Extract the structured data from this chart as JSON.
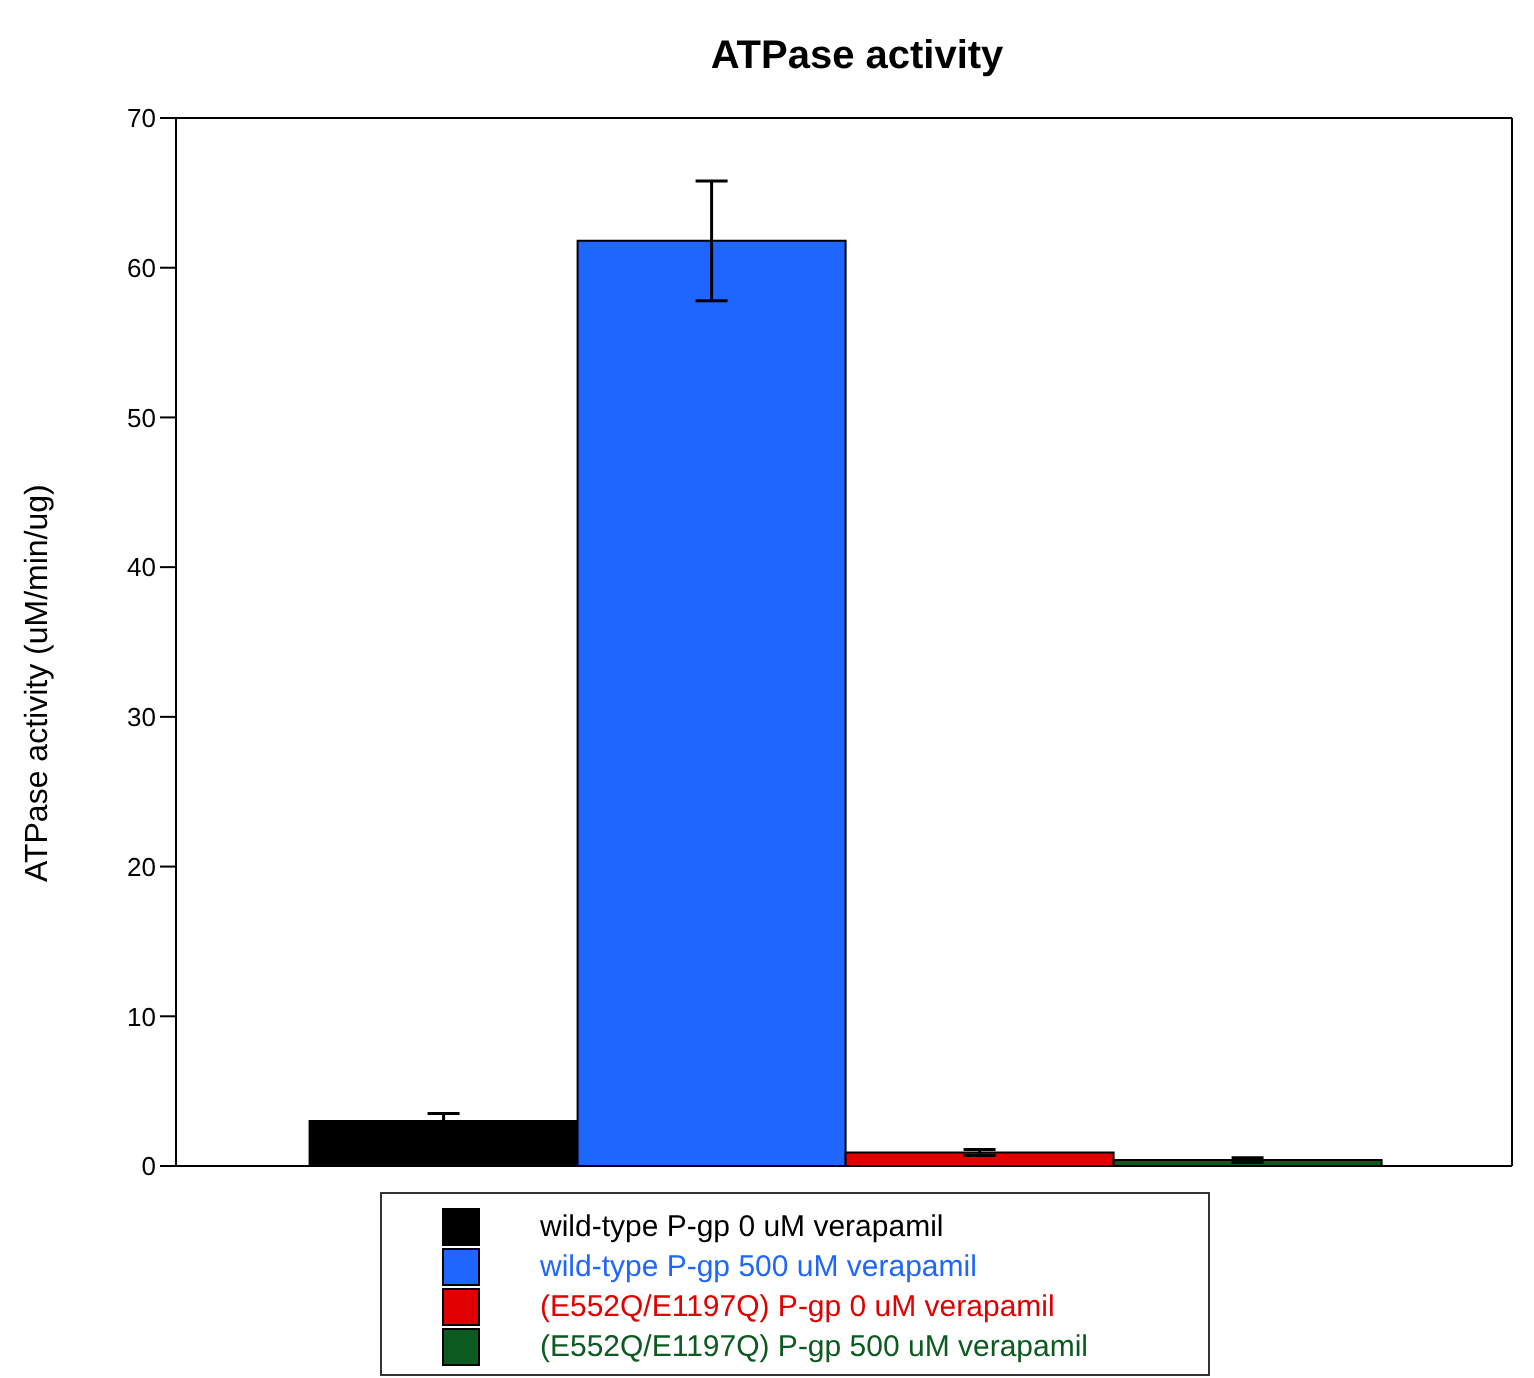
{
  "chart_data": {
    "type": "bar",
    "title": "ATPase activity",
    "ylabel": "ATPase activity (uM/min/ug)",
    "categories": [
      null
    ],
    "series": [
      {
        "name": "wild-type P-gp 0 uM verapamil",
        "color": "#000000",
        "values": [
          3.0
        ],
        "errors": [
          0.5
        ]
      },
      {
        "name": "wild-type P-gp 500 uM verapamil",
        "color": "#1f66ff",
        "values": [
          61.8
        ],
        "errors": [
          4.0
        ]
      },
      {
        "name": "(E552Q/E1197Q) P-gp 0 uM verapamil",
        "color": "#e00000",
        "values": [
          0.9
        ],
        "errors": [
          0.2
        ]
      },
      {
        "name": "(E552Q/E1197Q) P-gp 500 uM verapamil",
        "color": "#0b5a1f",
        "values": [
          0.4
        ],
        "errors": [
          0.15
        ]
      }
    ],
    "ylim": [
      0,
      70
    ],
    "yticks": [
      0,
      10,
      20,
      30,
      40,
      50,
      60,
      70
    ],
    "tick_labels": "y",
    "grid": false,
    "legend": "bottom"
  }
}
